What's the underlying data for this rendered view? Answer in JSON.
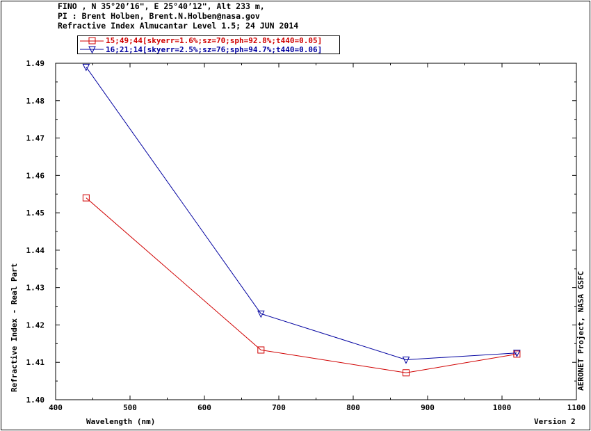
{
  "header": {
    "line1": "FINO , N 35°20’16\", E 25°40’12\", Alt 233 m,",
    "line2": "PI : Brent Holben, Brent.N.Holben@nasa.gov",
    "line3": "Refractive Index Almucantar Level 1.5; 24 JUN 2014"
  },
  "side_label": "AERONET Project, NASA GSFC",
  "footer": {
    "version": "Version 2"
  },
  "colors": {
    "series_red": "#d00000",
    "series_blue": "#0000a0"
  },
  "chart_data": {
    "type": "line",
    "xlabel": "Wavelength (nm)",
    "ylabel": "Refractive Index - Real Part",
    "xlim": [
      400,
      1100
    ],
    "ylim": [
      1.4,
      1.49
    ],
    "x_ticks": [
      400,
      500,
      600,
      700,
      800,
      900,
      1000,
      1100
    ],
    "y_ticks": [
      1.4,
      1.41,
      1.42,
      1.43,
      1.44,
      1.45,
      1.46,
      1.47,
      1.48,
      1.49
    ],
    "x_tick_labels": [
      "400",
      "500",
      "600",
      "700",
      "800",
      "900",
      "1000",
      "1100"
    ],
    "y_tick_labels": [
      "1.40",
      "1.41",
      "1.42",
      "1.43",
      "1.44",
      "1.45",
      "1.46",
      "1.47",
      "1.48",
      "1.49"
    ],
    "legend_position": "top-left",
    "grid": false,
    "series": [
      {
        "name": "15;49;44[skyerr=1.6%;sz=70;sph=92.8%;t440=0.05]",
        "color": "#d00000",
        "marker": "square",
        "x": [
          441,
          676,
          871,
          1020
        ],
        "y": [
          1.454,
          1.4133,
          1.4072,
          1.4122
        ]
      },
      {
        "name": "16;21;14[skyerr=2.5%;sz=76;sph=94.7%;t440=0.06]",
        "color": "#0000a0",
        "marker": "triangle-down",
        "x": [
          441,
          676,
          871,
          1020
        ],
        "y": [
          1.489,
          1.423,
          1.4107,
          1.4125
        ]
      }
    ]
  }
}
